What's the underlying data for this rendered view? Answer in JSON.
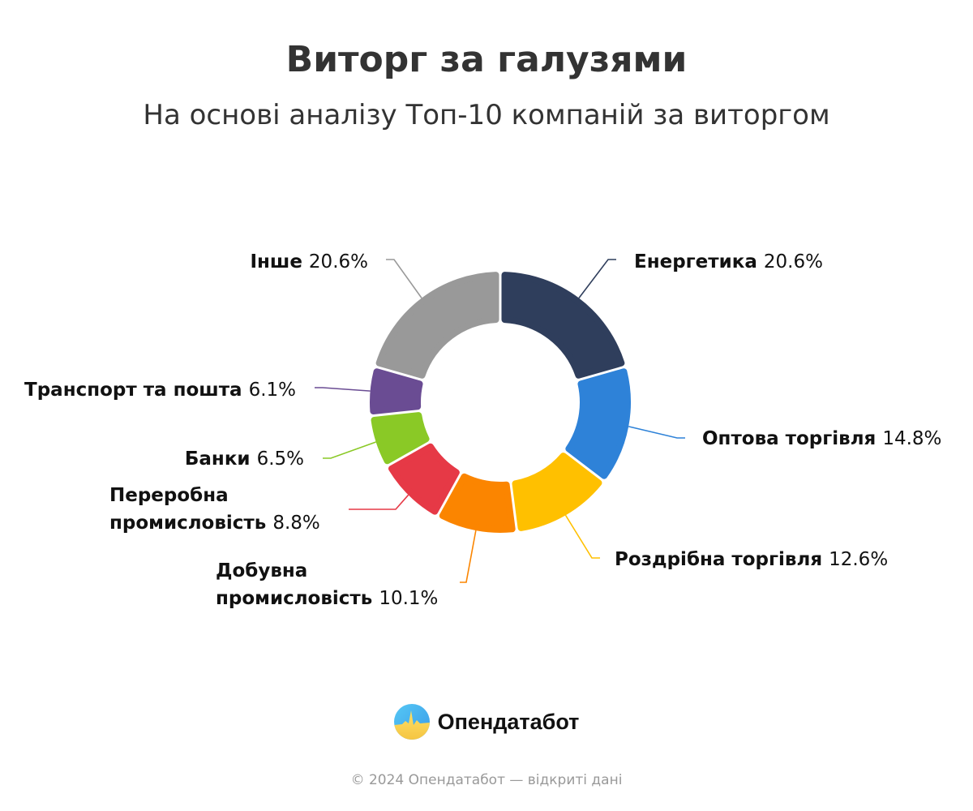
{
  "chart_data": {
    "type": "pie",
    "variant": "donut",
    "title": "Виторг за галузями",
    "subtitle": "На основі аналізу Топ-10 компаній за виторгом",
    "unit": "%",
    "start": "top",
    "direction": "clockwise",
    "slices": [
      {
        "name": "Енергетика",
        "value": 20.6,
        "label": "20.6%",
        "color": "#2f3e5c"
      },
      {
        "name": "Оптова торгівля",
        "value": 14.8,
        "label": "14.8%",
        "color": "#2e82d8"
      },
      {
        "name": "Роздрібна торгівля",
        "value": 12.6,
        "label": "12.6%",
        "color": "#ffc000"
      },
      {
        "name": "Добувна промисловість",
        "name_lines": [
          "Добувна",
          "промисловість"
        ],
        "value": 10.1,
        "label": "10.1%",
        "color": "#fb8500"
      },
      {
        "name": "Переробна промисловість",
        "name_lines": [
          "Переробна",
          "промисловість"
        ],
        "value": 8.8,
        "label": "8.8%",
        "color": "#e63946"
      },
      {
        "name": "Банки",
        "value": 6.5,
        "label": "6.5%",
        "color": "#8ac926"
      },
      {
        "name": "Транспорт та пошта",
        "value": 6.1,
        "label": "6.1%",
        "color": "#6a4c93"
      },
      {
        "name": "Інше",
        "value": 20.6,
        "label": "20.6%",
        "color": "#999999"
      }
    ]
  },
  "brand": {
    "name": "Опендатабот",
    "icon": "opendatabot-logo-icon"
  },
  "footer": "© 2024 Опендатабот — відкриті дані"
}
